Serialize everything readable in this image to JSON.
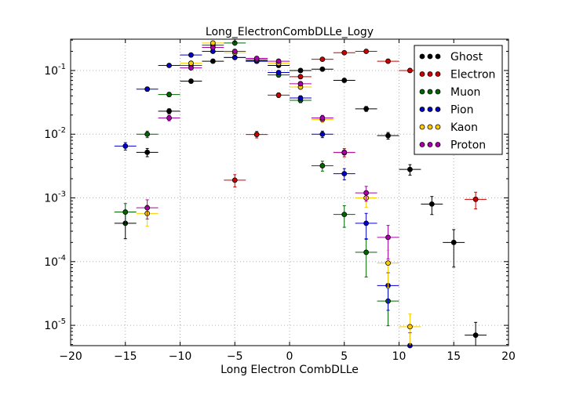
{
  "chart_data": {
    "type": "scatter",
    "title": "Long_ElectronCombDLLe_Logy",
    "xlabel": "Long Electron CombDLLe",
    "ylabel": "",
    "xlim": [
      -20,
      20
    ],
    "ylim": [
      4.8e-06,
      0.31
    ],
    "yscale": "log",
    "grid": true,
    "legend_position": "top-right",
    "x_ticks": [
      -20,
      -15,
      -10,
      -5,
      0,
      5,
      10,
      15,
      20
    ],
    "x_tick_labels": [
      "−20",
      "−15",
      "−10",
      "−5",
      "0",
      "5",
      "10",
      "15",
      "20"
    ],
    "y_ticks": [
      1e-05,
      0.0001,
      0.001,
      0.01,
      0.1
    ],
    "y_tick_labels": [
      {
        "base": "10",
        "exp": "-5"
      },
      {
        "base": "10",
        "exp": "-4"
      },
      {
        "base": "10",
        "exp": "-3"
      },
      {
        "base": "10",
        "exp": "-2"
      },
      {
        "base": "10",
        "exp": "-1"
      }
    ],
    "bin_half_width": 1,
    "series": [
      {
        "name": "Ghost",
        "color": "#000000",
        "points": [
          [
            -15,
            0.0004
          ],
          [
            -13,
            0.0052
          ],
          [
            -11,
            0.023
          ],
          [
            -9,
            0.068
          ],
          [
            -7,
            0.14
          ],
          [
            -5,
            0.16
          ],
          [
            -3,
            0.145
          ],
          [
            -1,
            0.12
          ],
          [
            1,
            0.1
          ],
          [
            3,
            0.105
          ],
          [
            5,
            0.07
          ],
          [
            7,
            0.025
          ],
          [
            9,
            0.0095
          ],
          [
            11,
            0.0028
          ],
          [
            13,
            0.0008
          ],
          [
            15,
            0.0002
          ],
          [
            17,
            7e-06
          ]
        ]
      },
      {
        "name": "Electron",
        "color": "#cc0000",
        "points": [
          [
            -5,
            0.0019
          ],
          [
            -3,
            0.0099
          ],
          [
            -1,
            0.041
          ],
          [
            1,
            0.08
          ],
          [
            3,
            0.15
          ],
          [
            5,
            0.19
          ],
          [
            7,
            0.2
          ],
          [
            9,
            0.14
          ],
          [
            11,
            0.1
          ],
          [
            17,
            0.00095
          ]
        ]
      },
      {
        "name": "Muon",
        "color": "#006600",
        "points": [
          [
            -15,
            0.0006
          ],
          [
            -13,
            0.01
          ],
          [
            -11,
            0.042
          ],
          [
            -9,
            0.12
          ],
          [
            -7,
            0.25
          ],
          [
            -5,
            0.27
          ],
          [
            -3,
            0.14
          ],
          [
            -1,
            0.085
          ],
          [
            1,
            0.034
          ],
          [
            3,
            0.0032
          ],
          [
            5,
            0.00055
          ],
          [
            7,
            0.00014
          ],
          [
            9,
            2.4e-05
          ]
        ]
      },
      {
        "name": "Pion",
        "color": "#0000cc",
        "points": [
          [
            -15,
            0.0065
          ],
          [
            -13,
            0.051
          ],
          [
            -11,
            0.12
          ],
          [
            -9,
            0.175
          ],
          [
            -7,
            0.2
          ],
          [
            -5,
            0.16
          ],
          [
            -3,
            0.14
          ],
          [
            -1,
            0.093
          ],
          [
            1,
            0.037
          ],
          [
            3,
            0.01
          ],
          [
            5,
            0.0024
          ],
          [
            7,
            0.0004
          ],
          [
            9,
            4.2e-05
          ],
          [
            11,
            4.8e-06
          ]
        ]
      },
      {
        "name": "Kaon",
        "color": "#ffcc00",
        "points": [
          [
            -13,
            0.00057
          ],
          [
            -9,
            0.13
          ],
          [
            -7,
            0.27
          ],
          [
            -5,
            0.19
          ],
          [
            -3,
            0.15
          ],
          [
            -1,
            0.13
          ],
          [
            1,
            0.055
          ],
          [
            3,
            0.017
          ],
          [
            5,
            0.0051
          ],
          [
            7,
            0.001
          ],
          [
            9,
            9.5e-05
          ],
          [
            11,
            9.5e-06
          ]
        ]
      },
      {
        "name": "Proton",
        "color": "#aa00aa",
        "points": [
          [
            -13,
            0.0007
          ],
          [
            -11,
            0.018
          ],
          [
            -9,
            0.11
          ],
          [
            -7,
            0.23
          ],
          [
            -5,
            0.2
          ],
          [
            -3,
            0.155
          ],
          [
            -1,
            0.14
          ],
          [
            1,
            0.062
          ],
          [
            3,
            0.018
          ],
          [
            5,
            0.0052
          ],
          [
            7,
            0.0012
          ],
          [
            9,
            0.00024
          ]
        ]
      }
    ]
  }
}
